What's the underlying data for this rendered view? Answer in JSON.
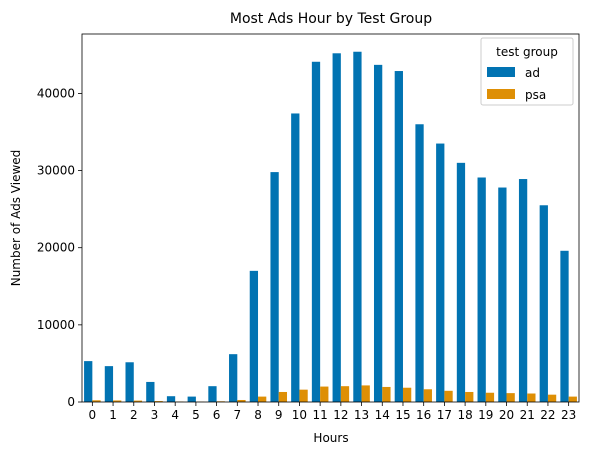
{
  "chart_data": {
    "type": "bar",
    "title": "Most Ads Hour by Test Group",
    "xlabel": "Hours",
    "ylabel": "Number of Ads Viewed",
    "categories": [
      "0",
      "1",
      "2",
      "3",
      "4",
      "5",
      "6",
      "7",
      "8",
      "9",
      "10",
      "11",
      "12",
      "13",
      "14",
      "15",
      "16",
      "17",
      "18",
      "19",
      "20",
      "21",
      "22",
      "23"
    ],
    "ylim": [
      0,
      47700
    ],
    "yticks": [
      0,
      10000,
      20000,
      30000,
      40000
    ],
    "grid": false,
    "legend": {
      "title": "test group",
      "placement": "top-right"
    },
    "series": [
      {
        "name": "ad",
        "color": "#0173b2",
        "values": [
          5300,
          4650,
          5150,
          2600,
          750,
          700,
          2050,
          6200,
          17000,
          29800,
          37400,
          44100,
          45200,
          45400,
          43700,
          42900,
          36000,
          33500,
          31000,
          29100,
          27800,
          28900,
          25500,
          19600
        ]
      },
      {
        "name": "psa",
        "color": "#de8f05",
        "values": [
          220,
          200,
          180,
          120,
          50,
          30,
          90,
          260,
          700,
          1300,
          1600,
          2000,
          2050,
          2150,
          1950,
          1850,
          1650,
          1450,
          1300,
          1200,
          1150,
          1100,
          950,
          700
        ]
      }
    ]
  }
}
